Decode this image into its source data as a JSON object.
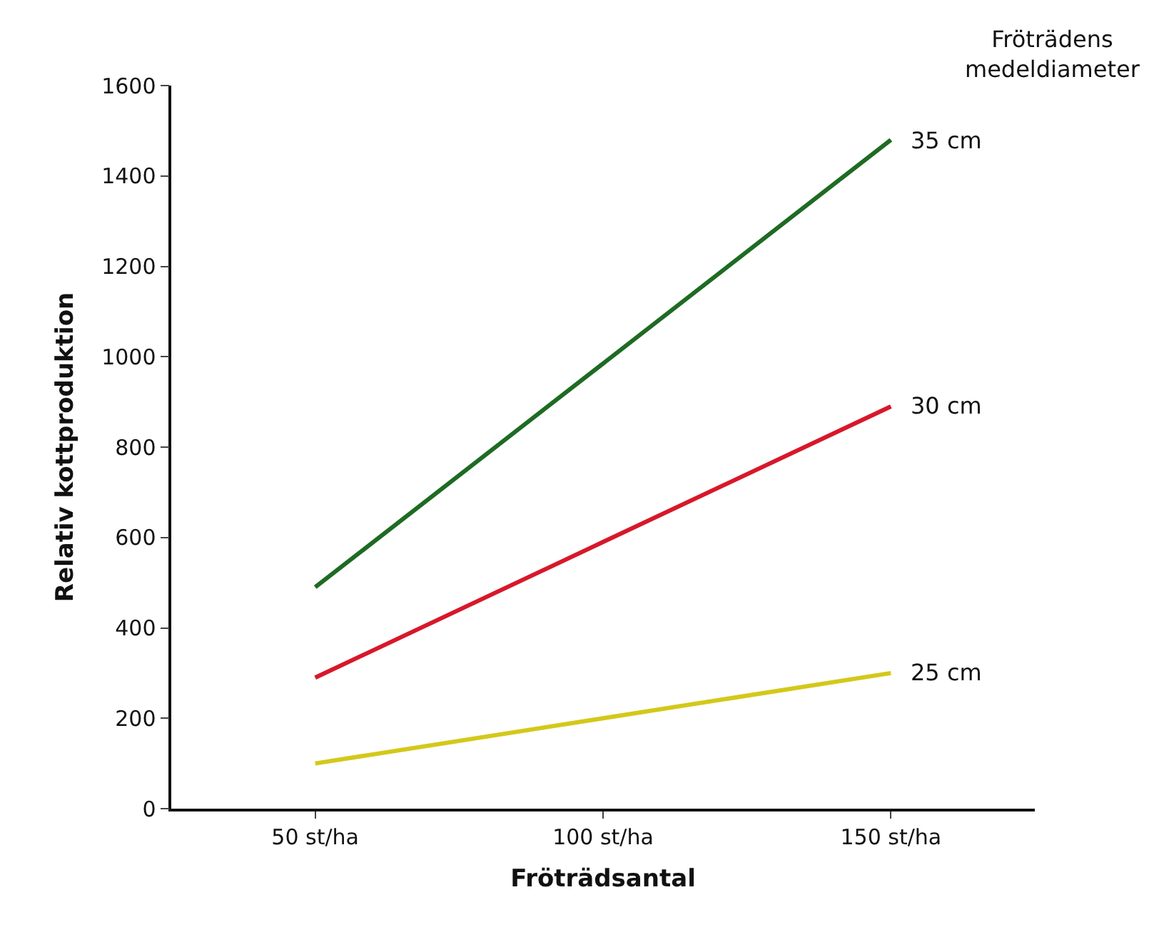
{
  "chart_data": {
    "type": "line",
    "xlabel": "Fröträdsantal",
    "ylabel": "Relativ kottproduktion",
    "legend_title": "Fröträdens medeldiameter",
    "categories": [
      "50 st/ha",
      "100 st/ha",
      "150 st/ha"
    ],
    "series": [
      {
        "name": "35 cm",
        "color": "#1e6b23",
        "values": [
          490,
          985,
          1480
        ]
      },
      {
        "name": "30 cm",
        "color": "#d7182a",
        "values": [
          290,
          590,
          890
        ]
      },
      {
        "name": "25 cm",
        "color": "#d4c81a",
        "values": [
          100,
          200,
          300
        ]
      }
    ],
    "ylim": [
      0,
      1600
    ],
    "yticks": [
      0,
      200,
      400,
      600,
      800,
      1000,
      1200,
      1400,
      1600
    ],
    "marker": "none",
    "line_style": "solid"
  }
}
